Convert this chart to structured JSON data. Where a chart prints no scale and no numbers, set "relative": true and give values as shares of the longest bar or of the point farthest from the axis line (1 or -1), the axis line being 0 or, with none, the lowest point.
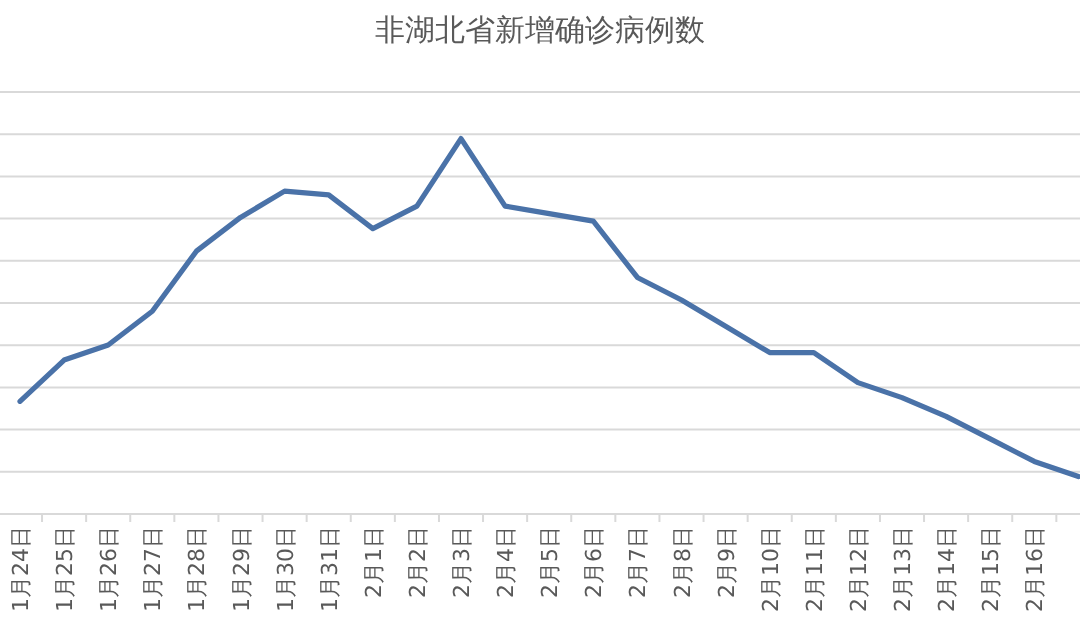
{
  "chart_data": {
    "type": "line",
    "title": "非湖北省新增确诊病例数",
    "relative": true,
    "grid": true,
    "categories": [
      "1月24日",
      "1月25日",
      "1月26日",
      "1月27日",
      "1月28日",
      "1月29日",
      "1月30日",
      "1月31日",
      "2月1日",
      "2月2日",
      "2月3日",
      "2月4日",
      "2月5日",
      "2月6日",
      "2月7日",
      "2月8日",
      "2月9日",
      "2月10日",
      "2月11日",
      "2月12日",
      "2月13日",
      "2月14日",
      "2月15日",
      "2月16日",
      null
    ],
    "series": [
      {
        "color": "#4a72a8",
        "values": [
          0.3,
          0.41,
          0.45,
          0.54,
          0.7,
          0.79,
          0.86,
          0.85,
          0.76,
          0.82,
          1,
          0.82,
          0.8,
          0.78,
          0.63,
          0.57,
          0.5,
          0.43,
          0.43,
          0.35,
          0.31,
          0.26,
          0.2,
          0.14,
          0.1
        ]
      }
    ]
  }
}
